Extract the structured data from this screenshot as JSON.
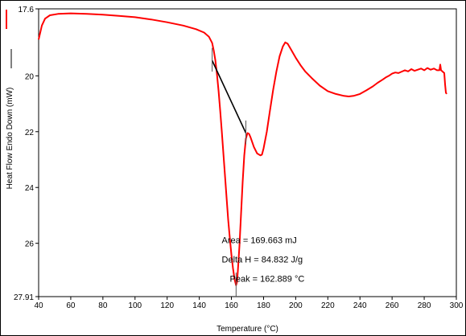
{
  "chart_data": {
    "type": "line",
    "title": "",
    "xlabel": "Temperature (°C)",
    "ylabel": "Heat Flow Endo Down (mW)",
    "xlim": [
      40,
      300
    ],
    "ylim": [
      17.6,
      27.91
    ],
    "y_inverted": true,
    "x_ticks": [
      "40",
      "60",
      "80",
      "100",
      "120",
      "140",
      "160",
      "180",
      "200",
      "220",
      "240",
      "260",
      "280",
      "300"
    ],
    "y_ticks": [
      "17.6",
      "20",
      "22",
      "24",
      "26",
      "27.91"
    ],
    "grid": false,
    "series": [
      {
        "color": "#ff0000",
        "points": [
          [
            40,
            18.7
          ],
          [
            41,
            18.45
          ],
          [
            42,
            18.2
          ],
          [
            44,
            17.95
          ],
          [
            47,
            17.83
          ],
          [
            52,
            17.78
          ],
          [
            60,
            17.76
          ],
          [
            70,
            17.78
          ],
          [
            80,
            17.81
          ],
          [
            90,
            17.85
          ],
          [
            100,
            17.9
          ],
          [
            110,
            17.98
          ],
          [
            120,
            18.08
          ],
          [
            130,
            18.2
          ],
          [
            138,
            18.33
          ],
          [
            143,
            18.45
          ],
          [
            146,
            18.6
          ],
          [
            148,
            18.82
          ],
          [
            149,
            19.1
          ],
          [
            150,
            19.45
          ],
          [
            151,
            19.95
          ],
          [
            152,
            20.55
          ],
          [
            153,
            21.25
          ],
          [
            154,
            22.0
          ],
          [
            155,
            22.8
          ],
          [
            156,
            23.6
          ],
          [
            157,
            24.4
          ],
          [
            158,
            25.15
          ],
          [
            159,
            25.8
          ],
          [
            160,
            26.4
          ],
          [
            161,
            26.9
          ],
          [
            162,
            27.3
          ],
          [
            162.9,
            27.5
          ],
          [
            163.5,
            27.38
          ],
          [
            164,
            27.0
          ],
          [
            165,
            26.1
          ],
          [
            166,
            24.95
          ],
          [
            167,
            23.8
          ],
          [
            168,
            22.85
          ],
          [
            169,
            22.25
          ],
          [
            170,
            22.05
          ],
          [
            171,
            22.08
          ],
          [
            172,
            22.22
          ],
          [
            174,
            22.55
          ],
          [
            176,
            22.78
          ],
          [
            178,
            22.85
          ],
          [
            179,
            22.82
          ],
          [
            180,
            22.6
          ],
          [
            182,
            22.0
          ],
          [
            184,
            21.25
          ],
          [
            186,
            20.5
          ],
          [
            188,
            19.85
          ],
          [
            190,
            19.3
          ],
          [
            192,
            18.95
          ],
          [
            193.5,
            18.8
          ],
          [
            195,
            18.85
          ],
          [
            197,
            19.05
          ],
          [
            200,
            19.35
          ],
          [
            203,
            19.62
          ],
          [
            206,
            19.85
          ],
          [
            210,
            20.08
          ],
          [
            215,
            20.35
          ],
          [
            220,
            20.55
          ],
          [
            225,
            20.65
          ],
          [
            230,
            20.72
          ],
          [
            233,
            20.74
          ],
          [
            236,
            20.72
          ],
          [
            240,
            20.65
          ],
          [
            244,
            20.52
          ],
          [
            248,
            20.38
          ],
          [
            251,
            20.25
          ],
          [
            254,
            20.14
          ],
          [
            256,
            20.06
          ],
          [
            258,
            20.0
          ],
          [
            260,
            19.92
          ],
          [
            262,
            19.88
          ],
          [
            264,
            19.9
          ],
          [
            266,
            19.85
          ],
          [
            268,
            19.8
          ],
          [
            270,
            19.84
          ],
          [
            272,
            19.76
          ],
          [
            274,
            19.82
          ],
          [
            276,
            19.78
          ],
          [
            278,
            19.74
          ],
          [
            280,
            19.8
          ],
          [
            282,
            19.72
          ],
          [
            284,
            19.78
          ],
          [
            286,
            19.74
          ],
          [
            288,
            19.8
          ],
          [
            289.5,
            19.8
          ],
          [
            290,
            19.6
          ],
          [
            290.5,
            19.8
          ],
          [
            291.5,
            19.85
          ],
          [
            292.5,
            19.9
          ],
          [
            293,
            20.3
          ],
          [
            293.5,
            20.6
          ],
          [
            294,
            20.65
          ]
        ]
      }
    ],
    "baseline": {
      "color": "#000000",
      "from": [
        148,
        19.45
      ],
      "to": [
        169,
        22.05
      ]
    },
    "markers": [
      {
        "x": 148
      },
      {
        "x": 169
      },
      {
        "x": 162.9
      }
    ],
    "annotations": [
      {
        "text": "Area = 169.663 mJ",
        "x": 154,
        "y": 26.0
      },
      {
        "text": "Delta H = 84.832 J/g",
        "x": 154,
        "y": 26.68
      },
      {
        "text": "Peak = 162.889 °C",
        "x": 159,
        "y": 27.38
      }
    ]
  }
}
